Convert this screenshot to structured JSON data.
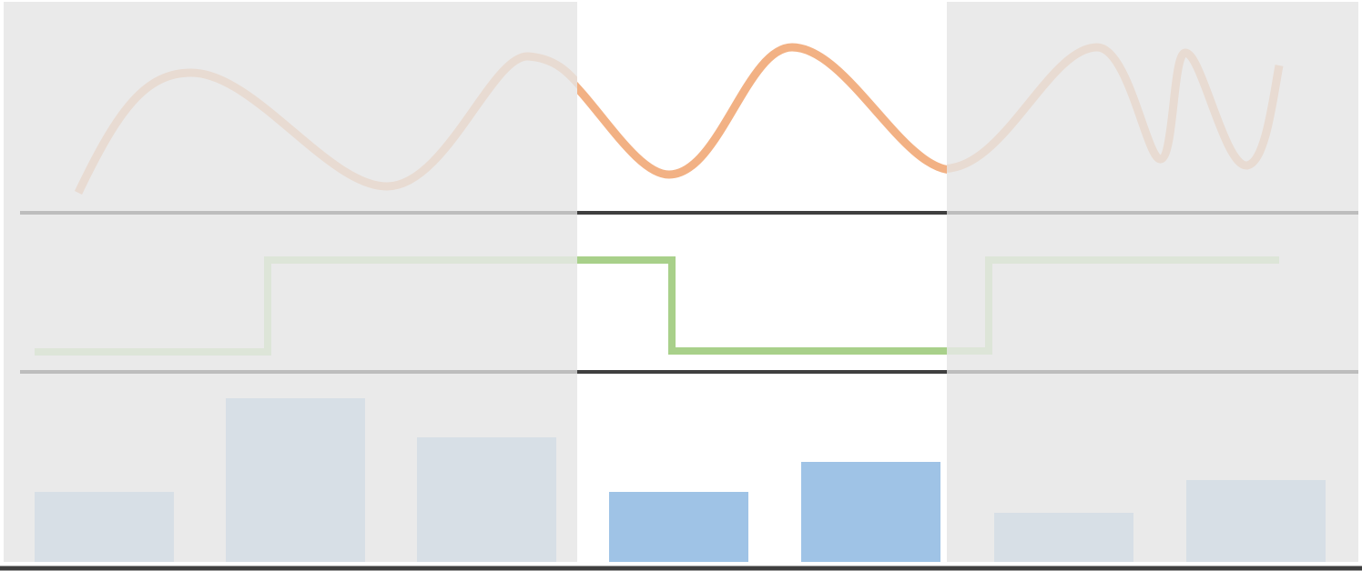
{
  "colors": {
    "background": "#ffffff",
    "dim_overlay": "#eaeaea",
    "wave": "#f2b184",
    "wave_dim": "#e8dbd2",
    "step": "#a8d08a",
    "step_dim": "#dde5d8",
    "bar": "#9fc3e6",
    "bar_dim": "#d7dfe6",
    "axis": "#3f3f3f",
    "axis_dim": "#bdbdbd"
  },
  "panels": {
    "count": 3,
    "names": [
      "wave",
      "step",
      "bars"
    ]
  },
  "highlight_window": {
    "description_visible": false
  },
  "chart_data": {
    "type": "line",
    "wave": {
      "samples": [
        0.1,
        0.7,
        0.95,
        0.72,
        0.2,
        0.05,
        0.55,
        0.9,
        0.62,
        0.1,
        0.5,
        1.0,
        0.4,
        0.12,
        0.2,
        0.92,
        0.3,
        0.95,
        0.15,
        0.85
      ]
    },
    "step": {
      "levels": [
        0,
        1,
        1,
        0,
        0,
        1,
        1
      ]
    },
    "bars": {
      "values": [
        0.43,
        1.0,
        0.76,
        0.43,
        0.61,
        0.3,
        0.5
      ]
    }
  }
}
